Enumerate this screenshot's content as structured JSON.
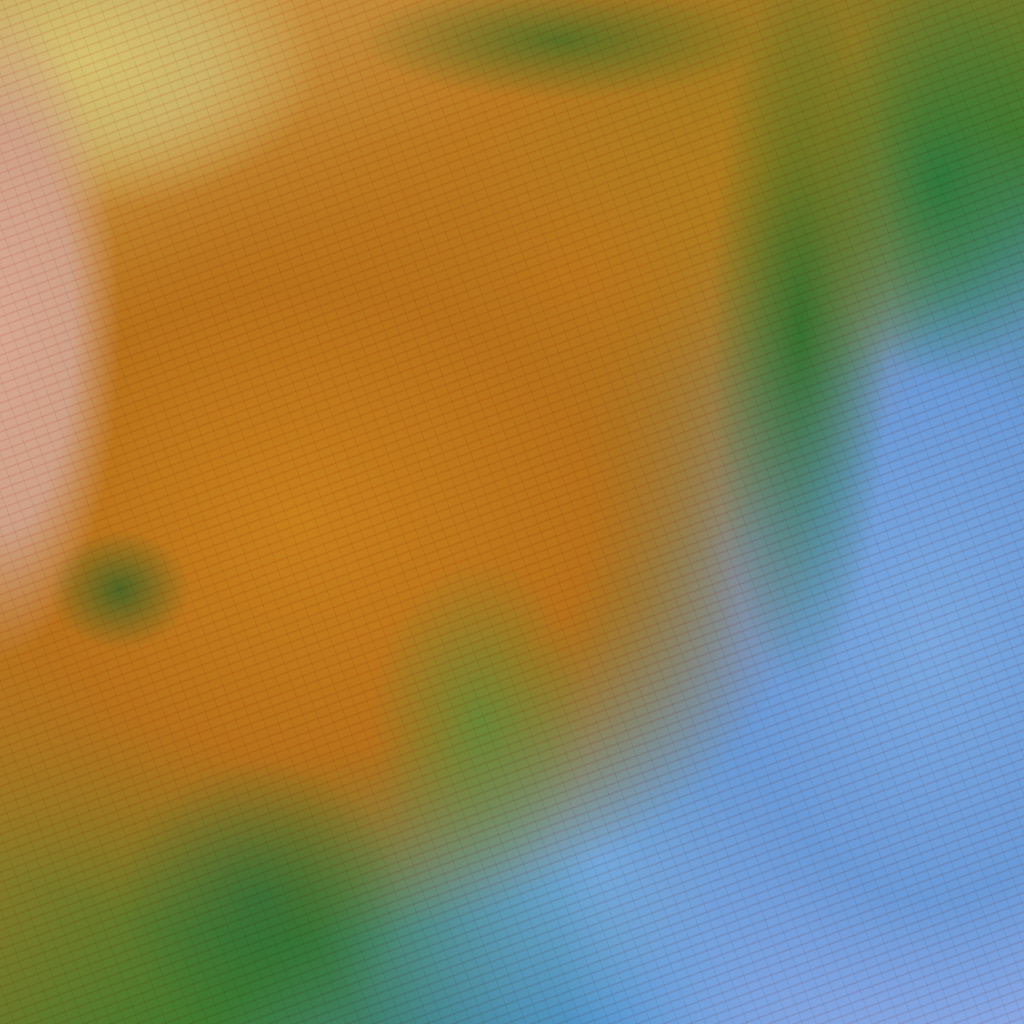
{
  "image": {
    "kind": "false-color satellite cloud imagery",
    "colors": {
      "thick_cloud": "#c07a1c",
      "land": "#d8a890",
      "pale_top_left": "#d6c270",
      "transition_green": "#3f7a2e",
      "low_cloud_blue": "#7aa8e0",
      "lavender": "#a7b6f2"
    }
  }
}
